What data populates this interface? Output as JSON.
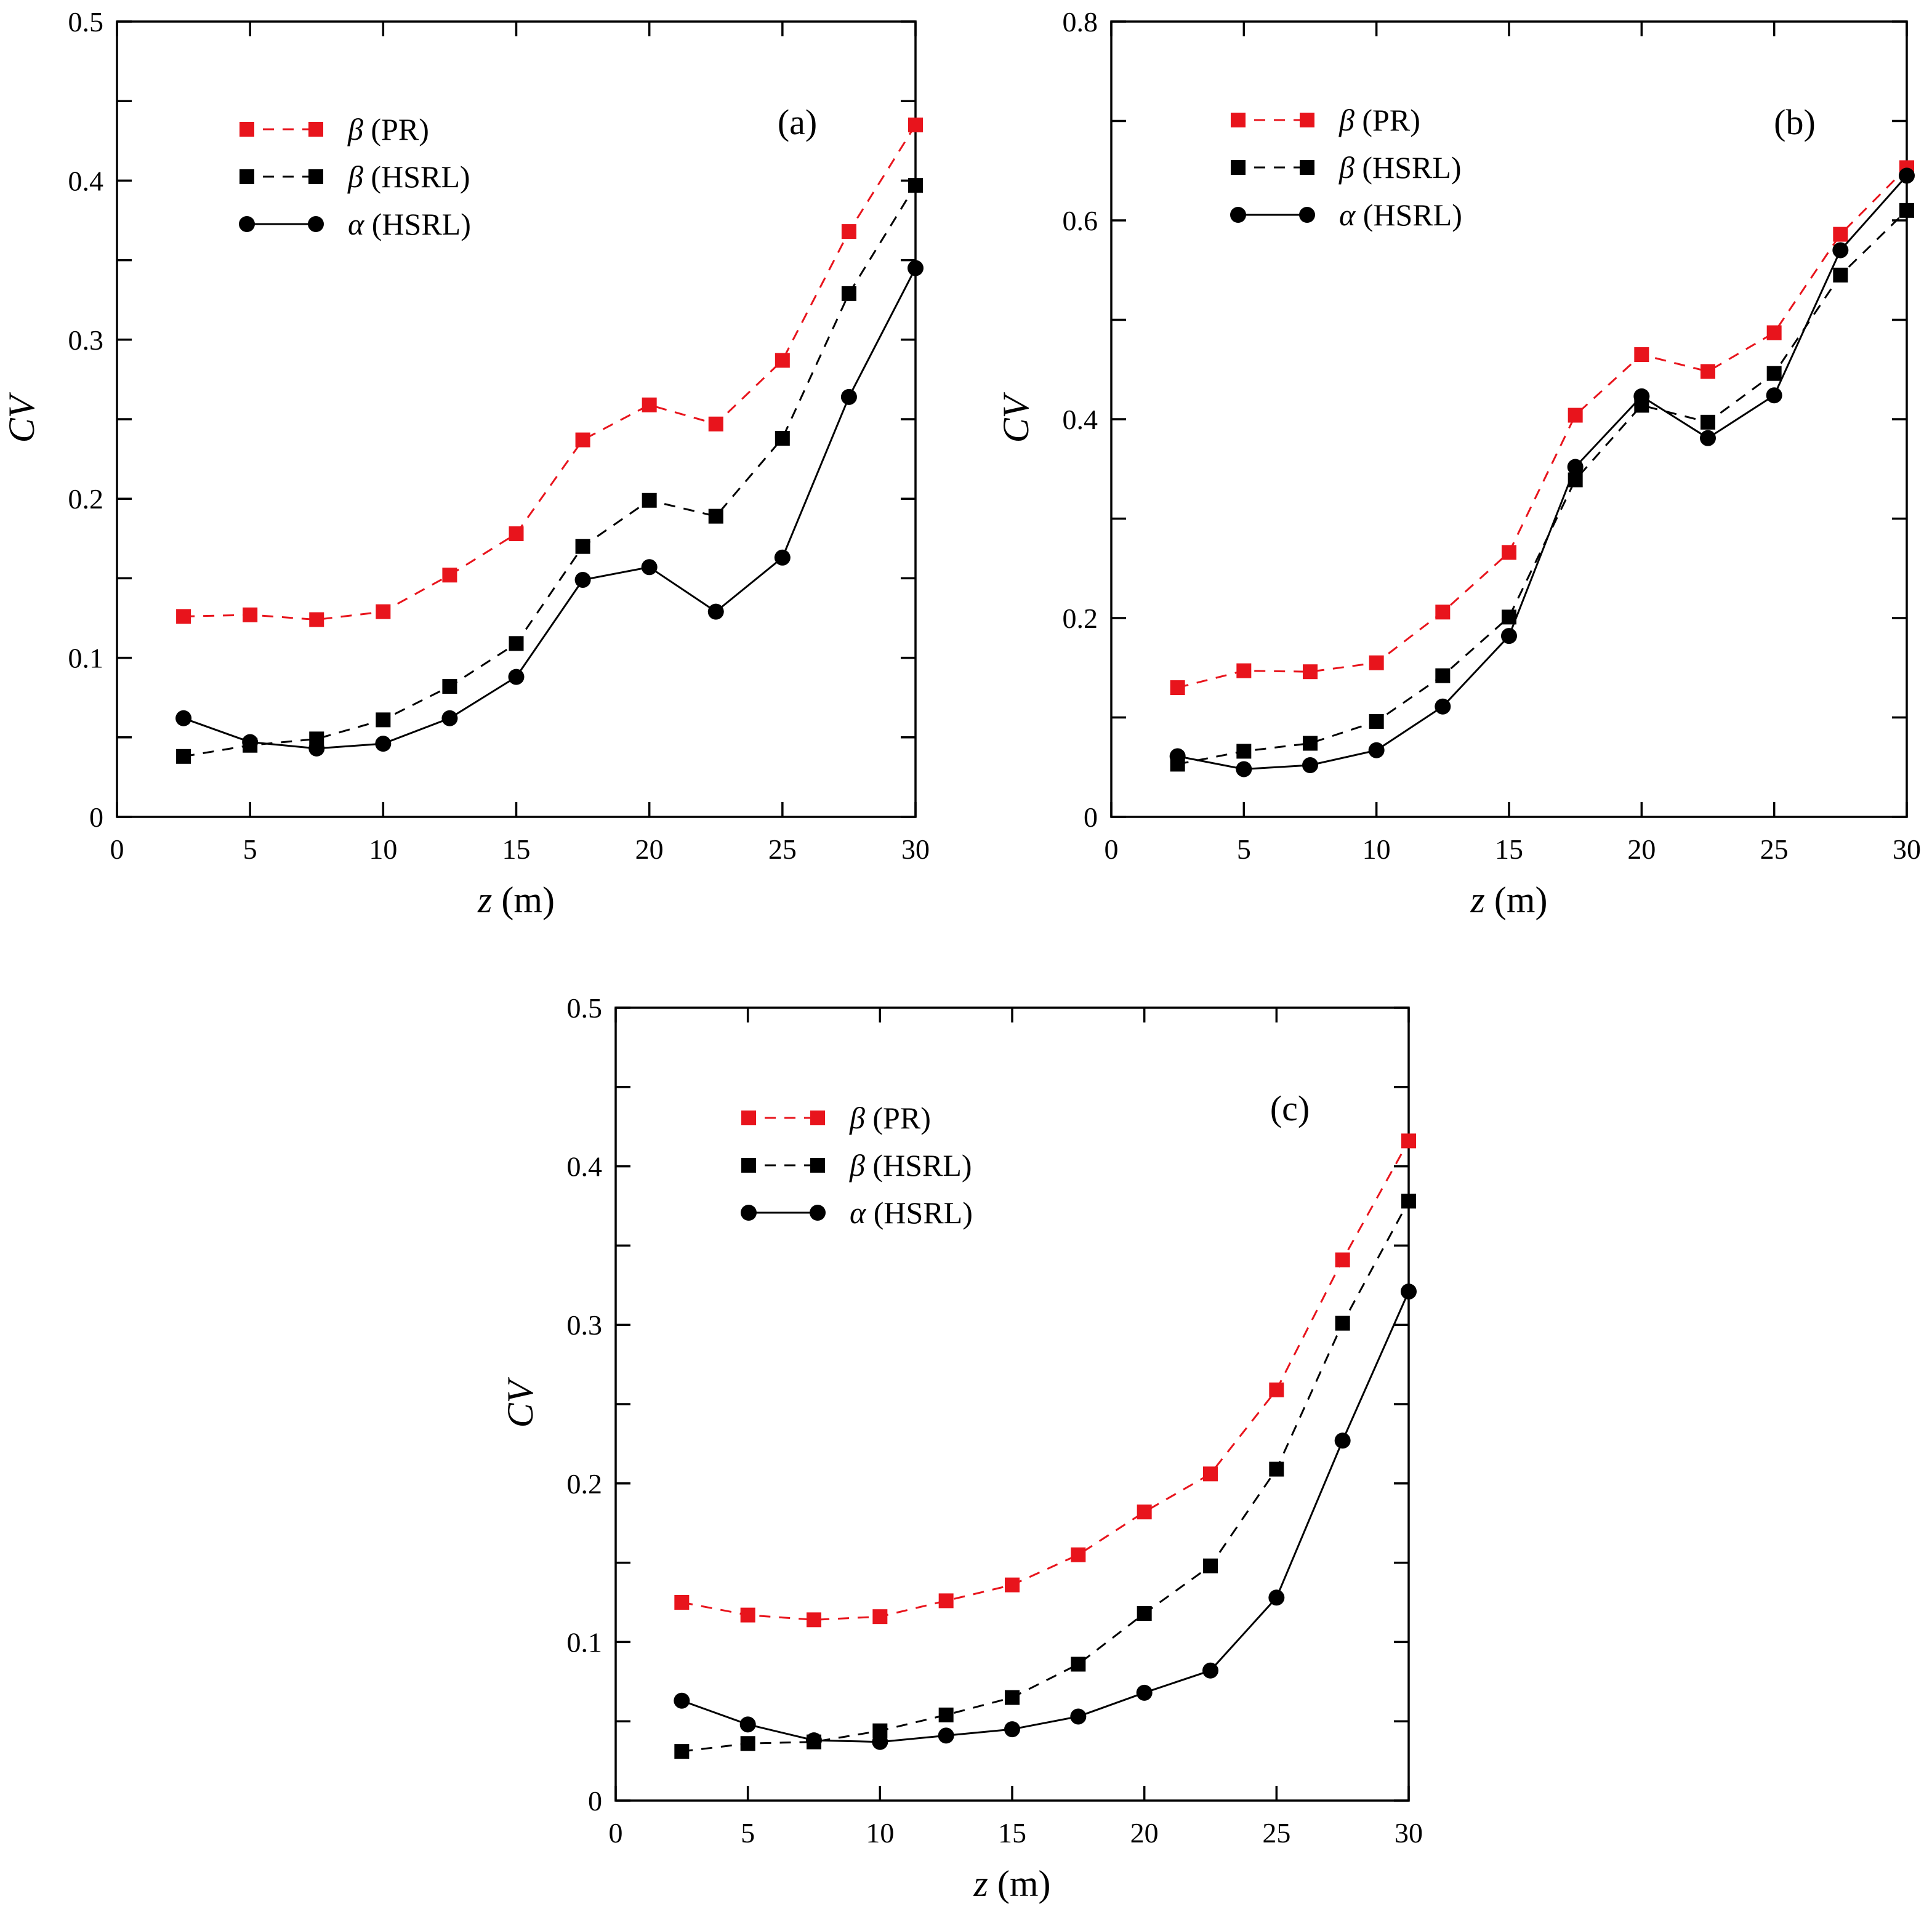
{
  "figure": {
    "colors": {
      "red": "#e8141c",
      "black": "#000000"
    }
  },
  "chart_data": [
    {
      "id": "a",
      "type": "line",
      "panel_label": "(a)",
      "xlabel_var": "z",
      "xlabel_unit": " (m)",
      "ylabel": "CV",
      "xlim": [
        0,
        30
      ],
      "ylim": [
        0,
        0.5
      ],
      "xticks": [
        0,
        5,
        10,
        15,
        20,
        25,
        30
      ],
      "xtick_labels": [
        "0",
        "5",
        "10",
        "15",
        "20",
        "25",
        "30"
      ],
      "yticks": [
        0,
        0.1,
        0.2,
        0.3,
        0.4,
        0.5
      ],
      "ytick_labels": [
        "0",
        "0.1",
        "0.2",
        "0.3",
        "0.4",
        "0.5"
      ],
      "minor_yticks": [
        0.05,
        0.15,
        0.25,
        0.35,
        0.45
      ],
      "x": [
        2.5,
        5,
        7.5,
        10,
        12.5,
        15,
        17.5,
        20,
        22.5,
        25,
        27.5,
        30
      ],
      "series": [
        {
          "name": "β (PR)",
          "symbol": "β",
          "suffix": " (PR)",
          "marker": "square",
          "line": "dashed",
          "color": "#e8141c",
          "values": [
            0.126,
            0.127,
            0.124,
            0.129,
            0.152,
            0.178,
            0.237,
            0.259,
            0.247,
            0.287,
            0.368,
            0.435
          ]
        },
        {
          "name": "β (HSRL)",
          "symbol": "β",
          "suffix": " (HSRL)",
          "marker": "square",
          "line": "dashed",
          "color": "#000000",
          "values": [
            0.038,
            0.045,
            0.049,
            0.061,
            0.082,
            0.109,
            0.17,
            0.199,
            0.189,
            0.238,
            0.329,
            0.397
          ]
        },
        {
          "name": "α (HSRL)",
          "symbol": "α",
          "suffix": " (HSRL)",
          "marker": "circle",
          "line": "solid",
          "color": "#000000",
          "values": [
            0.062,
            0.047,
            0.043,
            0.046,
            0.062,
            0.088,
            0.149,
            0.157,
            0.129,
            0.163,
            0.264,
            0.345
          ]
        }
      ]
    },
    {
      "id": "b",
      "type": "line",
      "panel_label": "(b)",
      "xlabel_var": "z",
      "xlabel_unit": " (m)",
      "ylabel": "CV",
      "xlim": [
        0,
        30
      ],
      "ylim": [
        0,
        0.8
      ],
      "xticks": [
        0,
        5,
        10,
        15,
        20,
        25,
        30
      ],
      "xtick_labels": [
        "0",
        "5",
        "10",
        "15",
        "20",
        "25",
        "30"
      ],
      "yticks": [
        0,
        0.2,
        0.4,
        0.6,
        0.8
      ],
      "ytick_labels": [
        "0",
        "0.2",
        "0.4",
        "0.6",
        "0.8"
      ],
      "minor_yticks": [
        0.1,
        0.3,
        0.5,
        0.7
      ],
      "x": [
        2.5,
        5,
        7.5,
        10,
        12.5,
        15,
        17.5,
        20,
        22.5,
        25,
        27.5,
        30
      ],
      "series": [
        {
          "name": "β (PR)",
          "symbol": "β",
          "suffix": " (PR)",
          "marker": "square",
          "line": "dashed",
          "color": "#e8141c",
          "values": [
            0.13,
            0.147,
            0.146,
            0.155,
            0.206,
            0.266,
            0.404,
            0.465,
            0.448,
            0.487,
            0.586,
            0.653
          ]
        },
        {
          "name": "β (HSRL)",
          "symbol": "β",
          "suffix": " (HSRL)",
          "marker": "square",
          "line": "dashed",
          "color": "#000000",
          "values": [
            0.053,
            0.066,
            0.074,
            0.096,
            0.142,
            0.201,
            0.339,
            0.414,
            0.397,
            0.446,
            0.545,
            0.61
          ]
        },
        {
          "name": "α (HSRL)",
          "symbol": "α",
          "suffix": " (HSRL)",
          "marker": "circle",
          "line": "solid",
          "color": "#000000",
          "values": [
            0.061,
            0.048,
            0.052,
            0.067,
            0.111,
            0.182,
            0.352,
            0.423,
            0.381,
            0.424,
            0.57,
            0.645
          ]
        }
      ]
    },
    {
      "id": "c",
      "type": "line",
      "panel_label": "(c)",
      "xlabel_var": "z",
      "xlabel_unit": " (m)",
      "ylabel": "CV",
      "xlim": [
        0,
        30
      ],
      "ylim": [
        0,
        0.5
      ],
      "xticks": [
        0,
        5,
        10,
        15,
        20,
        25,
        30
      ],
      "xtick_labels": [
        "0",
        "5",
        "10",
        "15",
        "20",
        "25",
        "30"
      ],
      "yticks": [
        0,
        0.1,
        0.2,
        0.3,
        0.4,
        0.5
      ],
      "ytick_labels": [
        "0",
        "0.1",
        "0.2",
        "0.3",
        "0.4",
        "0.5"
      ],
      "minor_yticks": [
        0.05,
        0.15,
        0.25,
        0.35,
        0.45
      ],
      "x": [
        2.5,
        5,
        7.5,
        10,
        12.5,
        15,
        17.5,
        20,
        22.5,
        25,
        27.5,
        30
      ],
      "series": [
        {
          "name": "β (PR)",
          "symbol": "β",
          "suffix": " (PR)",
          "marker": "square",
          "line": "dashed",
          "color": "#e8141c",
          "values": [
            0.125,
            0.117,
            0.114,
            0.116,
            0.126,
            0.136,
            0.155,
            0.182,
            0.206,
            0.259,
            0.341,
            0.416
          ]
        },
        {
          "name": "β (HSRL)",
          "symbol": "β",
          "suffix": " (HSRL)",
          "marker": "square",
          "line": "dashed",
          "color": "#000000",
          "values": [
            0.031,
            0.036,
            0.037,
            0.044,
            0.054,
            0.065,
            0.086,
            0.118,
            0.148,
            0.209,
            0.301,
            0.378
          ]
        },
        {
          "name": "α (HSRL)",
          "symbol": "α",
          "suffix": " (HSRL)",
          "marker": "circle",
          "line": "solid",
          "color": "#000000",
          "values": [
            0.063,
            0.048,
            0.038,
            0.037,
            0.041,
            0.045,
            0.053,
            0.068,
            0.082,
            0.128,
            0.227,
            0.321
          ]
        }
      ]
    }
  ]
}
